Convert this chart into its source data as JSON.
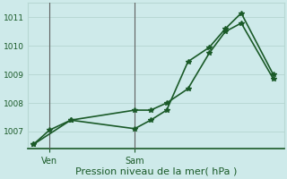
{
  "xlabel": "Pression niveau de la mer( hPa )",
  "bg_color": "#ceeaea",
  "grid_color": "#b8d8d4",
  "line_color": "#1a5a28",
  "spine_color": "#1a5a28",
  "yticks": [
    1007,
    1008,
    1009,
    1010,
    1011
  ],
  "ylim": [
    1006.4,
    1011.5
  ],
  "xlim": [
    0,
    24
  ],
  "xtick_positions": [
    2,
    10
  ],
  "xtick_labels": [
    "Ven",
    "Sam"
  ],
  "vline_ven": 2,
  "vline_sam": 10,
  "series1_x": [
    0.5,
    2,
    4,
    10,
    11.5,
    13,
    15,
    17,
    18.5,
    20,
    23
  ],
  "series1_y": [
    1006.55,
    1007.05,
    1007.4,
    1007.1,
    1007.4,
    1007.75,
    1009.45,
    1009.95,
    1010.6,
    1011.15,
    1009.0
  ],
  "series2_x": [
    0.5,
    4,
    10,
    11.5,
    13,
    15,
    17,
    18.5,
    20,
    23
  ],
  "series2_y": [
    1006.55,
    1007.4,
    1007.75,
    1007.75,
    1008.0,
    1008.5,
    1009.75,
    1010.5,
    1010.8,
    1008.85
  ],
  "markersize": 3,
  "linewidth": 1.2,
  "ytick_fontsize": 6.5,
  "xtick_fontsize": 7,
  "xlabel_fontsize": 8
}
